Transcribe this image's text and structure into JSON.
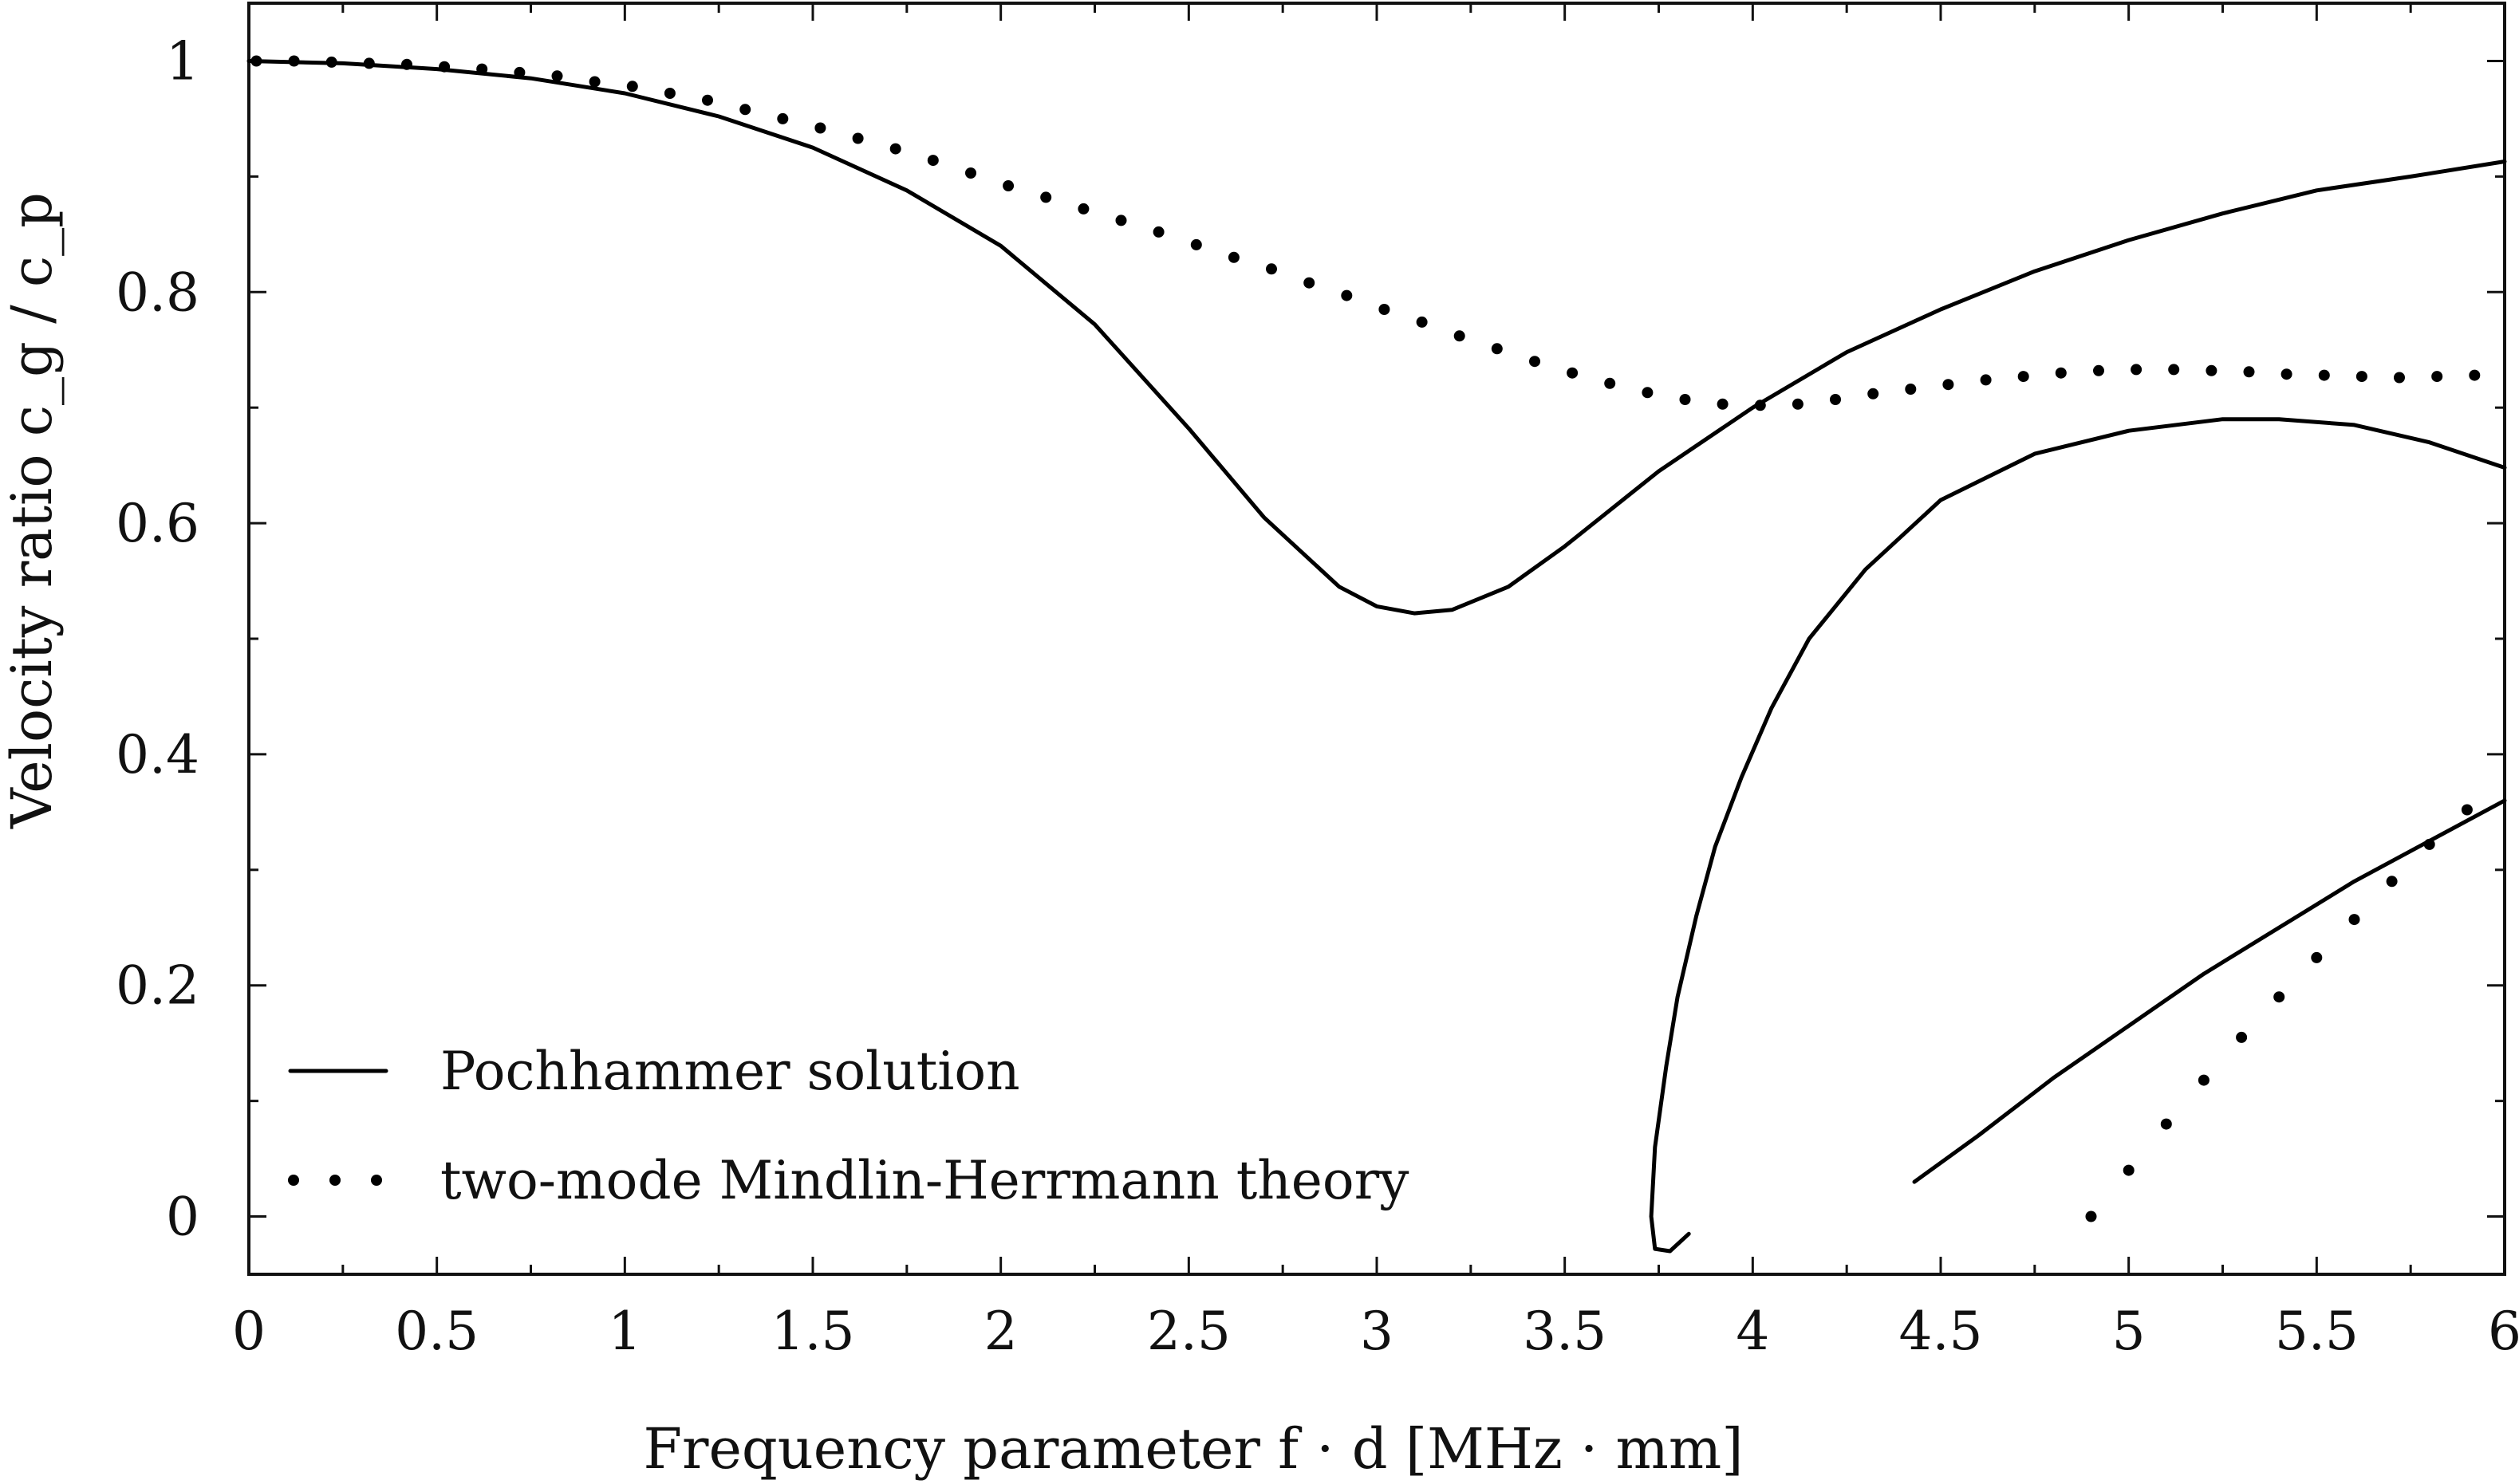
{
  "chart_data": {
    "type": "line",
    "title": "",
    "xlabel": "Frequency parameter f · d [MHz · mm]",
    "ylabel": "Velocity ratio c_g / c_p",
    "xlim": [
      0,
      6
    ],
    "ylim": [
      -0.05,
      1.05
    ],
    "x_ticks": [
      0,
      0.5,
      1,
      1.5,
      2,
      2.5,
      3,
      3.5,
      4,
      4.5,
      5,
      5.5,
      6
    ],
    "x_tick_labels": [
      "0",
      "0.5",
      "1",
      "1.5",
      "2",
      "2.5",
      "3",
      "3.5",
      "4",
      "4.5",
      "5",
      "5.5",
      "6"
    ],
    "y_ticks": [
      0,
      0.2,
      0.4,
      0.6,
      0.8,
      1
    ],
    "y_tick_labels": [
      "0",
      "0.2",
      "0.4",
      "0.6",
      "0.8",
      "1"
    ],
    "grid": false,
    "legend": {
      "position": "bottom-left",
      "entries": [
        {
          "label": "Pochhammer solution",
          "style": "solid"
        },
        {
          "label": "two-mode Mindlin-Herrmann theory",
          "style": "dotted"
        }
      ]
    },
    "series": [
      {
        "name": "Pochhammer solution – mode 1",
        "style": "solid",
        "points": [
          [
            0,
            1.0
          ],
          [
            0.25,
            0.998
          ],
          [
            0.5,
            0.993
          ],
          [
            0.75,
            0.985
          ],
          [
            1.0,
            0.972
          ],
          [
            1.25,
            0.952
          ],
          [
            1.5,
            0.925
          ],
          [
            1.75,
            0.888
          ],
          [
            2.0,
            0.84
          ],
          [
            2.25,
            0.772
          ],
          [
            2.5,
            0.682
          ],
          [
            2.7,
            0.605
          ],
          [
            2.9,
            0.545
          ],
          [
            3.0,
            0.528
          ],
          [
            3.1,
            0.522
          ],
          [
            3.2,
            0.525
          ],
          [
            3.35,
            0.545
          ],
          [
            3.5,
            0.58
          ],
          [
            3.75,
            0.645
          ],
          [
            4.0,
            0.7
          ],
          [
            4.25,
            0.748
          ],
          [
            4.5,
            0.785
          ],
          [
            4.75,
            0.818
          ],
          [
            5.0,
            0.845
          ],
          [
            5.25,
            0.868
          ],
          [
            5.5,
            0.888
          ],
          [
            5.75,
            0.9
          ],
          [
            6.0,
            0.913
          ]
        ]
      },
      {
        "name": "Pochhammer solution – mode 2",
        "style": "solid",
        "points": [
          [
            3.83,
            -0.015
          ],
          [
            3.78,
            -0.03
          ],
          [
            3.74,
            -0.028
          ],
          [
            3.73,
            0.0
          ],
          [
            3.74,
            0.06
          ],
          [
            3.77,
            0.13
          ],
          [
            3.8,
            0.19
          ],
          [
            3.85,
            0.26
          ],
          [
            3.9,
            0.32
          ],
          [
            3.97,
            0.38
          ],
          [
            4.05,
            0.44
          ],
          [
            4.15,
            0.5
          ],
          [
            4.3,
            0.56
          ],
          [
            4.5,
            0.62
          ],
          [
            4.75,
            0.66
          ],
          [
            5.0,
            0.68
          ],
          [
            5.25,
            0.69
          ],
          [
            5.4,
            0.69
          ],
          [
            5.6,
            0.685
          ],
          [
            5.8,
            0.67
          ],
          [
            6.0,
            0.648
          ]
        ]
      },
      {
        "name": "Pochhammer solution – mode 3",
        "style": "solid",
        "points": [
          [
            4.43,
            0.03
          ],
          [
            4.6,
            0.07
          ],
          [
            4.8,
            0.12
          ],
          [
            5.0,
            0.165
          ],
          [
            5.2,
            0.21
          ],
          [
            5.4,
            0.25
          ],
          [
            5.6,
            0.29
          ],
          [
            5.8,
            0.325
          ],
          [
            6.0,
            0.36
          ]
        ]
      },
      {
        "name": "two-mode Mindlin-Herrmann theory – mode 1",
        "style": "dotted",
        "points": [
          [
            0.02,
            1.0
          ],
          [
            0.12,
            1.0
          ],
          [
            0.22,
            0.999
          ],
          [
            0.32,
            0.998
          ],
          [
            0.42,
            0.997
          ],
          [
            0.52,
            0.995
          ],
          [
            0.62,
            0.993
          ],
          [
            0.72,
            0.99
          ],
          [
            0.82,
            0.987
          ],
          [
            0.92,
            0.982
          ],
          [
            1.02,
            0.978
          ],
          [
            1.12,
            0.972
          ],
          [
            1.22,
            0.966
          ],
          [
            1.32,
            0.958
          ],
          [
            1.42,
            0.95
          ],
          [
            1.52,
            0.942
          ],
          [
            1.62,
            0.933
          ],
          [
            1.72,
            0.924
          ],
          [
            1.82,
            0.914
          ],
          [
            1.92,
            0.903
          ],
          [
            2.02,
            0.892
          ],
          [
            2.12,
            0.882
          ],
          [
            2.22,
            0.872
          ],
          [
            2.32,
            0.862
          ],
          [
            2.42,
            0.852
          ],
          [
            2.52,
            0.841
          ],
          [
            2.62,
            0.83
          ],
          [
            2.72,
            0.82
          ],
          [
            2.82,
            0.808
          ],
          [
            2.92,
            0.797
          ],
          [
            3.02,
            0.785
          ],
          [
            3.12,
            0.774
          ],
          [
            3.22,
            0.762
          ],
          [
            3.32,
            0.751
          ],
          [
            3.42,
            0.74
          ],
          [
            3.52,
            0.73
          ],
          [
            3.62,
            0.721
          ],
          [
            3.72,
            0.713
          ],
          [
            3.82,
            0.707
          ],
          [
            3.92,
            0.703
          ],
          [
            4.02,
            0.702
          ],
          [
            4.12,
            0.703
          ],
          [
            4.22,
            0.707
          ],
          [
            4.32,
            0.712
          ],
          [
            4.42,
            0.716
          ],
          [
            4.52,
            0.72
          ],
          [
            4.62,
            0.724
          ],
          [
            4.72,
            0.727
          ],
          [
            4.82,
            0.73
          ],
          [
            4.92,
            0.732
          ],
          [
            5.02,
            0.733
          ],
          [
            5.12,
            0.733
          ],
          [
            5.22,
            0.732
          ],
          [
            5.32,
            0.731
          ],
          [
            5.42,
            0.729
          ],
          [
            5.52,
            0.728
          ],
          [
            5.62,
            0.727
          ],
          [
            5.72,
            0.726
          ],
          [
            5.82,
            0.727
          ],
          [
            5.92,
            0.728
          ]
        ]
      },
      {
        "name": "two-mode Mindlin-Herrmann theory – mode 2",
        "style": "dotted",
        "points": [
          [
            4.9,
            0.0
          ],
          [
            5.0,
            0.04
          ],
          [
            5.1,
            0.08
          ],
          [
            5.2,
            0.118
          ],
          [
            5.3,
            0.155
          ],
          [
            5.4,
            0.19
          ],
          [
            5.5,
            0.224
          ],
          [
            5.6,
            0.257
          ],
          [
            5.7,
            0.29
          ],
          [
            5.8,
            0.322
          ],
          [
            5.9,
            0.352
          ]
        ]
      }
    ]
  }
}
